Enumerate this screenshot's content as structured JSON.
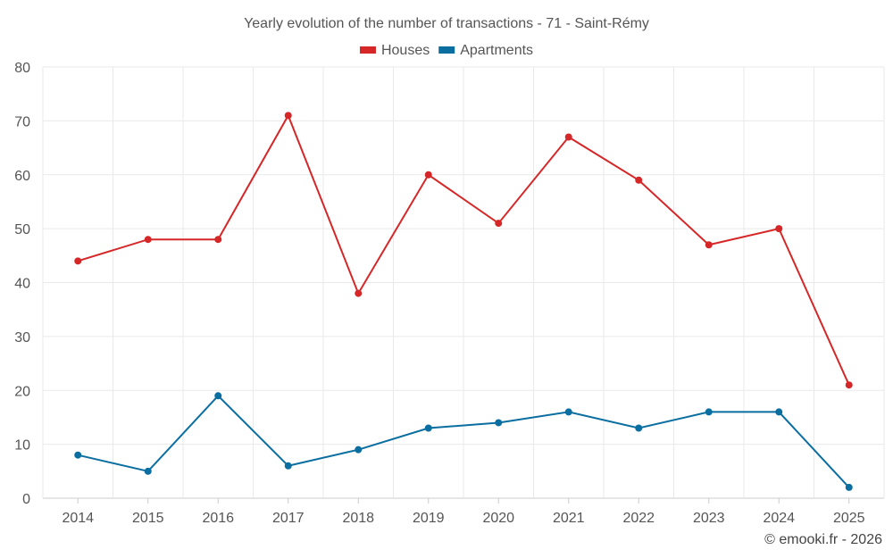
{
  "chart_data": {
    "type": "line",
    "title": "Yearly evolution of the number of transactions - 71 - Saint-Rémy",
    "categories": [
      "2014",
      "2015",
      "2016",
      "2017",
      "2018",
      "2019",
      "2020",
      "2021",
      "2022",
      "2023",
      "2024",
      "2025"
    ],
    "series": [
      {
        "name": "Houses",
        "color": "#d62728",
        "values": [
          44,
          48,
          48,
          71,
          38,
          60,
          51,
          67,
          59,
          47,
          50,
          21
        ]
      },
      {
        "name": "Apartments",
        "color": "#0b6ea1",
        "values": [
          8,
          5,
          19,
          6,
          9,
          13,
          14,
          16,
          13,
          16,
          16,
          2
        ]
      }
    ],
    "ylim": [
      0,
      80
    ],
    "yticks": [
      0,
      10,
      20,
      30,
      40,
      50,
      60,
      70,
      80
    ],
    "grid": true,
    "legend": "top-center",
    "credit": "© emooki.fr - 2026"
  }
}
